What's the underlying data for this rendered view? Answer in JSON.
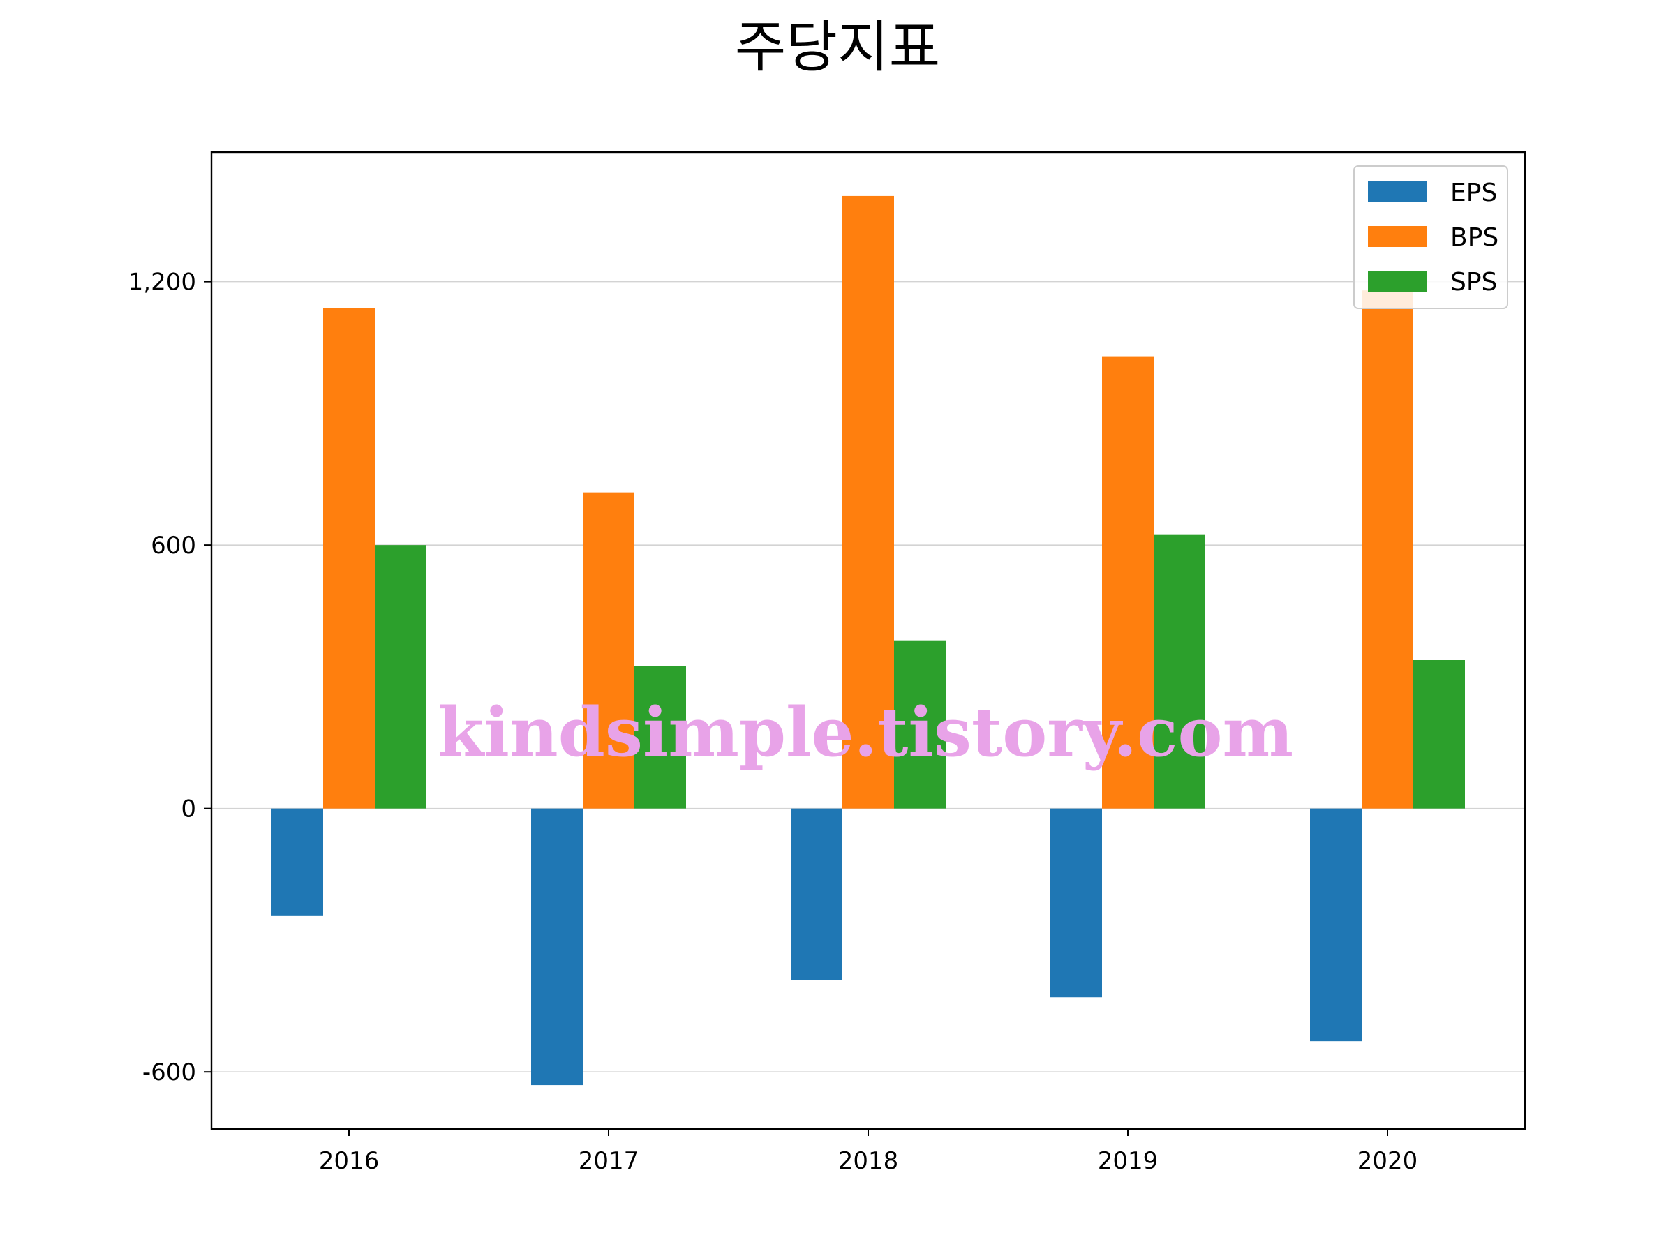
{
  "chart_data": {
    "type": "bar",
    "title": "주당지표",
    "xlabel": "",
    "ylabel": "",
    "categories": [
      "2016",
      "2017",
      "2018",
      "2019",
      "2020"
    ],
    "series": [
      {
        "name": "EPS",
        "color": "#1f77b4",
        "values": [
          -245,
          -630,
          -390,
          -430,
          -530
        ]
      },
      {
        "name": "BPS",
        "color": "#ff7f0e",
        "values": [
          1140,
          720,
          1395,
          1030,
          1180
        ]
      },
      {
        "name": "SPS",
        "color": "#2ca02c",
        "values": [
          600,
          325,
          383,
          623,
          338
        ]
      }
    ],
    "ylim": [
      -730,
      1495
    ],
    "yticks": [
      -600,
      0,
      600,
      1200
    ],
    "ytick_labels": [
      "-600",
      "0",
      "600",
      "1,200"
    ],
    "grid": "y",
    "legend": "top-right",
    "watermark": "kindsimple.tistory.com"
  }
}
